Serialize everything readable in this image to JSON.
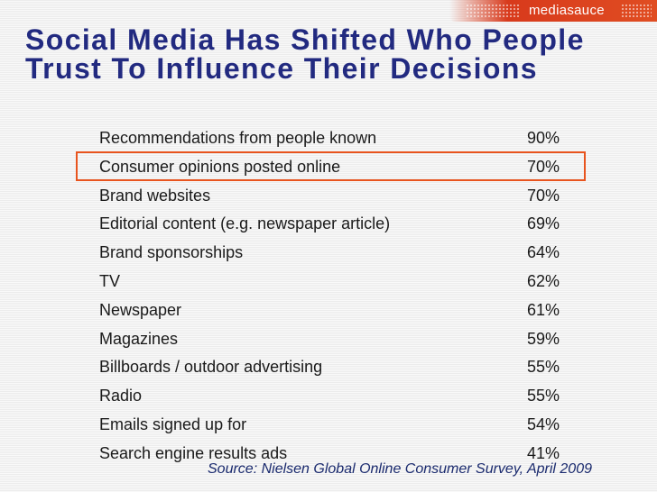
{
  "brand": {
    "logo_text": "mediasauce",
    "accent_color": "#e04d22"
  },
  "slide": {
    "title_line1": "Social Media Has Shifted Who People",
    "title_line2": "Trust To Influence Their Decisions",
    "source": "Source: Nielsen Global Online Consumer Survey, April 2009",
    "highlight_color": "#e8541e",
    "title_color": "#222a80"
  },
  "table": {
    "highlighted_row": 1,
    "rows": [
      {
        "label": "Recommendations from people known",
        "value": "90%"
      },
      {
        "label": "Consumer opinions posted online",
        "value": "70%"
      },
      {
        "label": "Brand websites",
        "value": "70%"
      },
      {
        "label": "Editorial content (e.g. newspaper article)",
        "value": "69%"
      },
      {
        "label": "Brand sponsorships",
        "value": "64%"
      },
      {
        "label": "TV",
        "value": "62%"
      },
      {
        "label": "Newspaper",
        "value": "61%"
      },
      {
        "label": "Magazines",
        "value": "59%"
      },
      {
        "label": "Billboards / outdoor advertising",
        "value": "55%"
      },
      {
        "label": "Radio",
        "value": "55%"
      },
      {
        "label": "Emails signed up for",
        "value": "54%"
      },
      {
        "label": "Search engine results ads",
        "value": "41%"
      }
    ]
  }
}
